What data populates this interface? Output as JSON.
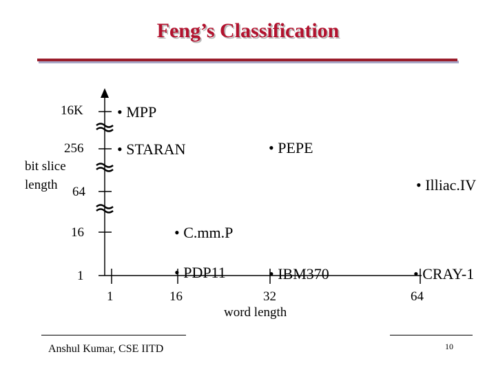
{
  "slide": {
    "title": "Feng’s Classification",
    "footer": "Anshul Kumar, CSE IITD",
    "page_number": "10"
  },
  "y_axis": {
    "label_line1": "bit slice",
    "label_line2": "length",
    "ticks": [
      "1",
      "16",
      "64",
      "256",
      "16K"
    ]
  },
  "x_axis": {
    "label": "word length",
    "ticks": [
      "1",
      "16",
      "32",
      "64"
    ]
  },
  "chart_data": {
    "type": "scatter",
    "xlabel": "word length",
    "ylabel": "bit slice length",
    "x_ticks": [
      "1",
      "16",
      "32",
      "64"
    ],
    "y_ticks": [
      "1",
      "16",
      "64",
      "256",
      "16K"
    ],
    "y_axis_breaks": true,
    "points": [
      {
        "label": "• MPP",
        "x": 1,
        "y": "16K"
      },
      {
        "label": "• STARAN",
        "x": 1,
        "y": "256"
      },
      {
        "label": "• PEPE",
        "x": 32,
        "y": "256"
      },
      {
        "label": "• Illiac.IV",
        "x": 64,
        "y": "64"
      },
      {
        "label": "• C.mm.P",
        "x": 16,
        "y": "16"
      },
      {
        "label": "• PDP11",
        "x": 16,
        "y": "1"
      },
      {
        "label": "• IBM370",
        "x": 32,
        "y": "1"
      },
      {
        "label": "• CRAY-1",
        "x": 64,
        "y": "1"
      }
    ]
  }
}
